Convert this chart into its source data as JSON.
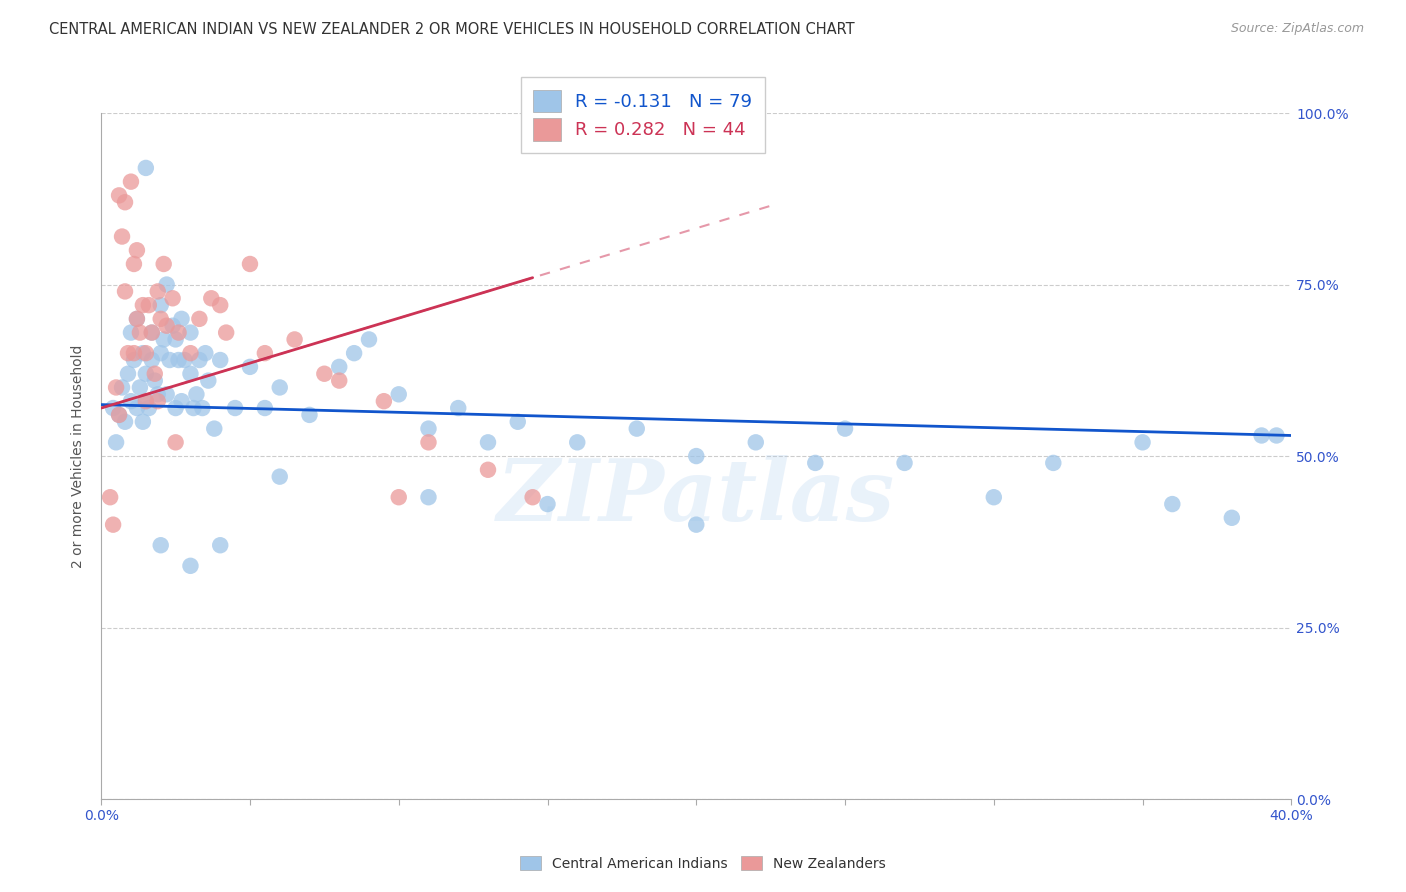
{
  "title": "CENTRAL AMERICAN INDIAN VS NEW ZEALANDER 2 OR MORE VEHICLES IN HOUSEHOLD CORRELATION CHART",
  "source": "Source: ZipAtlas.com",
  "ylabel": "2 or more Vehicles in Household",
  "xlim": [
    0.0,
    40.0
  ],
  "ylim": [
    0.0,
    100.0
  ],
  "yticks": [
    0.0,
    25.0,
    50.0,
    75.0,
    100.0
  ],
  "xtick_positions": [
    0.0,
    5.0,
    10.0,
    15.0,
    20.0,
    25.0,
    30.0,
    35.0,
    40.0
  ],
  "blue_legend": "R = -0.131   N = 79",
  "pink_legend": "R = 0.282   N = 44",
  "blue_color": "#9fc5e8",
  "pink_color": "#ea9999",
  "blue_line_color": "#1155cc",
  "pink_line_color": "#cc3355",
  "watermark": "ZIPatlas",
  "blue_scatter_x": [
    0.4,
    0.5,
    0.6,
    0.7,
    0.8,
    0.9,
    1.0,
    1.0,
    1.1,
    1.2,
    1.2,
    1.3,
    1.4,
    1.4,
    1.5,
    1.5,
    1.6,
    1.7,
    1.7,
    1.8,
    1.9,
    2.0,
    2.0,
    2.1,
    2.2,
    2.2,
    2.3,
    2.4,
    2.5,
    2.5,
    2.6,
    2.7,
    2.7,
    2.8,
    3.0,
    3.0,
    3.1,
    3.2,
    3.3,
    3.4,
    3.5,
    3.6,
    3.8,
    4.0,
    4.5,
    5.0,
    5.5,
    6.0,
    7.0,
    8.0,
    9.0,
    10.0,
    11.0,
    12.0,
    13.0,
    14.0,
    16.0,
    18.0,
    20.0,
    22.0,
    24.0,
    25.0,
    27.0,
    30.0,
    32.0,
    35.0,
    36.0,
    38.0,
    39.0,
    39.5,
    1.5,
    2.0,
    3.0,
    4.0,
    6.0,
    8.5,
    11.0,
    15.0,
    20.0
  ],
  "blue_scatter_y": [
    57.0,
    52.0,
    56.0,
    60.0,
    55.0,
    62.0,
    58.0,
    68.0,
    64.0,
    57.0,
    70.0,
    60.0,
    55.0,
    65.0,
    58.0,
    62.0,
    57.0,
    64.0,
    68.0,
    61.0,
    59.0,
    65.0,
    72.0,
    67.0,
    59.0,
    75.0,
    64.0,
    69.0,
    67.0,
    57.0,
    64.0,
    58.0,
    70.0,
    64.0,
    62.0,
    68.0,
    57.0,
    59.0,
    64.0,
    57.0,
    65.0,
    61.0,
    54.0,
    64.0,
    57.0,
    63.0,
    57.0,
    60.0,
    56.0,
    63.0,
    67.0,
    59.0,
    54.0,
    57.0,
    52.0,
    55.0,
    52.0,
    54.0,
    50.0,
    52.0,
    49.0,
    54.0,
    49.0,
    44.0,
    49.0,
    52.0,
    43.0,
    41.0,
    53.0,
    53.0,
    92.0,
    37.0,
    34.0,
    37.0,
    47.0,
    65.0,
    44.0,
    43.0,
    40.0
  ],
  "pink_scatter_x": [
    0.3,
    0.4,
    0.5,
    0.6,
    0.7,
    0.8,
    0.8,
    0.9,
    1.0,
    1.1,
    1.2,
    1.2,
    1.3,
    1.4,
    1.5,
    1.6,
    1.7,
    1.8,
    1.9,
    2.0,
    2.1,
    2.2,
    2.4,
    2.6,
    3.0,
    3.3,
    3.7,
    4.2,
    5.0,
    6.5,
    8.0,
    9.5,
    11.0,
    13.0,
    14.5,
    2.5,
    4.0,
    5.5,
    7.5,
    10.0,
    1.5,
    1.9,
    0.6,
    1.1
  ],
  "pink_scatter_y": [
    44.0,
    40.0,
    60.0,
    56.0,
    82.0,
    87.0,
    74.0,
    65.0,
    90.0,
    78.0,
    70.0,
    80.0,
    68.0,
    72.0,
    65.0,
    72.0,
    68.0,
    62.0,
    74.0,
    70.0,
    78.0,
    69.0,
    73.0,
    68.0,
    65.0,
    70.0,
    73.0,
    68.0,
    78.0,
    67.0,
    61.0,
    58.0,
    52.0,
    48.0,
    44.0,
    52.0,
    72.0,
    65.0,
    62.0,
    44.0,
    58.0,
    58.0,
    88.0,
    65.0
  ],
  "blue_trend_x": [
    0.0,
    40.0
  ],
  "blue_trend_y": [
    57.5,
    53.0
  ],
  "pink_trend_x": [
    0.0,
    14.5
  ],
  "pink_trend_y": [
    57.0,
    76.0
  ],
  "grid_color": "#cccccc",
  "bg_color": "#ffffff",
  "title_fontsize": 10.5,
  "label_fontsize": 10,
  "tick_fontsize": 10,
  "legend_fontsize": 13,
  "tick_color": "#3355cc"
}
